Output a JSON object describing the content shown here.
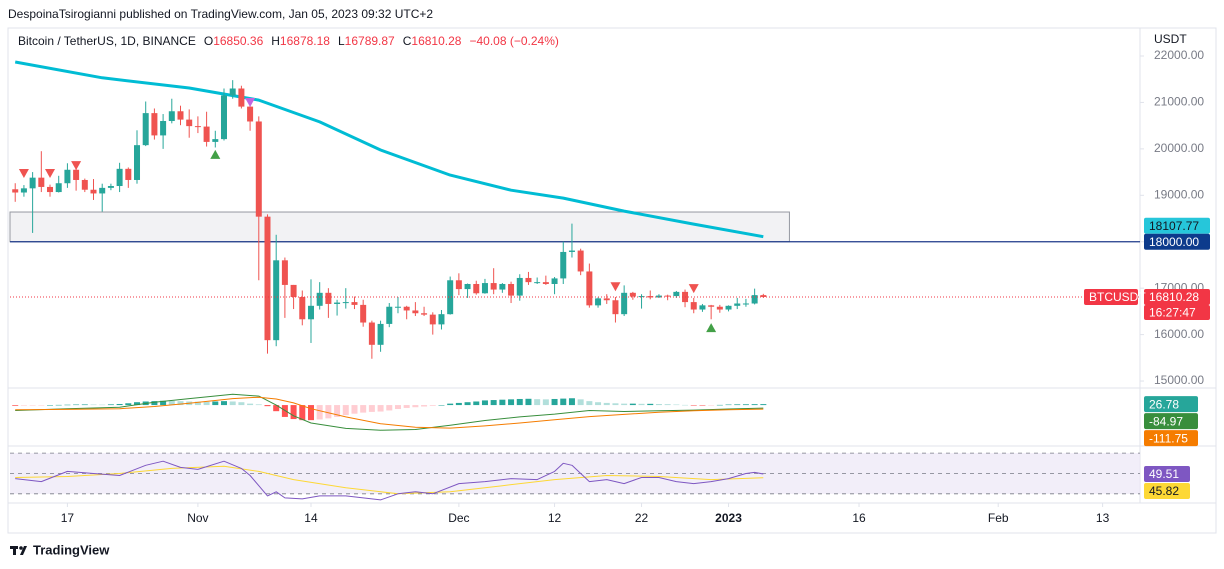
{
  "header": {
    "publisher": "DespoinaTsirogianni published on TradingView.com, Jan 05, 2023 09:32 UTC+2",
    "symbol": "Bitcoin / TetherUS, 1D, BINANCE",
    "o_label": "O",
    "h_label": "H",
    "l_label": "L",
    "c_label": "C",
    "change": "−40.08 (−0.24%)"
  },
  "footer": {
    "brand": "TradingView"
  },
  "chart_data": {
    "type": "candlestick",
    "open": [
      19130,
      19060,
      19150,
      19380,
      19180,
      19070,
      19260,
      19550,
      19330,
      19120,
      19040,
      19160,
      19200,
      19570,
      19330,
      20080,
      20770,
      20290,
      20600,
      20810,
      20630,
      20490,
      20480,
      20150,
      20210,
      21150,
      21300,
      20910,
      20590,
      18540,
      15880,
      17600,
      17070,
      16810,
      16330,
      16620,
      16900,
      16660,
      16690,
      16700,
      16640,
      16260,
      15780,
      16230,
      16600,
      16600,
      16520,
      16460,
      16430,
      16220,
      16440,
      17170,
      16980,
      17090,
      16890,
      17110,
      16970,
      17090,
      16840,
      17220,
      17130,
      17130,
      17090,
      17210,
      17780,
      17810,
      17360,
      16630,
      16780,
      16740,
      16440,
      16900,
      16820,
      16830,
      16800,
      16840,
      16830,
      16920,
      16700,
      16540,
      16630,
      16600,
      16540,
      16620,
      16670,
      16670,
      16850.36
    ],
    "high": [
      19260,
      19220,
      19500,
      19950,
      19230,
      19420,
      19690,
      19710,
      19360,
      19350,
      19250,
      19250,
      19700,
      19600,
      20400,
      21020,
      20870,
      20750,
      21080,
      20930,
      20850,
      20700,
      20800,
      20390,
      21300,
      21480,
      21360,
      21070,
      20700,
      18590,
      18150,
      17660,
      17070,
      16950,
      17190,
      17130,
      17000,
      16750,
      17000,
      16820,
      16750,
      16300,
      16300,
      16680,
      16810,
      16620,
      16700,
      16600,
      16480,
      16530,
      17250,
      17320,
      17100,
      17160,
      17200,
      17430,
      17110,
      17140,
      17300,
      17350,
      17230,
      17270,
      17240,
      18000,
      18390,
      17850,
      17530,
      16800,
      16870,
      16810,
      17060,
      16920,
      16870,
      16950,
      16870,
      16860,
      16940,
      16970,
      16790,
      16660,
      16640,
      16640,
      16630,
      16790,
      16770,
      16990,
      16878.18
    ],
    "low": [
      18860,
      18970,
      18190,
      19070,
      18970,
      19060,
      19160,
      19100,
      19070,
      18900,
      18650,
      19110,
      19070,
      19160,
      19250,
      20060,
      20200,
      20000,
      20550,
      20510,
      20240,
      20340,
      20050,
      20030,
      20180,
      21080,
      20870,
      20390,
      17170,
      15590,
      15750,
      16360,
      16550,
      16200,
      15820,
      16540,
      16360,
      16410,
      16560,
      16550,
      16170,
      15480,
      15630,
      16160,
      16460,
      16330,
      16400,
      16400,
      16000,
      16110,
      16430,
      16850,
      16790,
      16860,
      16880,
      16870,
      16900,
      16680,
      16730,
      17070,
      17090,
      17070,
      16870,
      17090,
      17660,
      17280,
      16580,
      16580,
      16660,
      16260,
      16400,
      16750,
      16560,
      16760,
      16790,
      16740,
      16790,
      16590,
      16460,
      16490,
      16330,
      16470,
      16500,
      16550,
      16600,
      16650,
      16789.87
    ],
    "close": [
      19060,
      19150,
      19380,
      19180,
      19070,
      19260,
      19550,
      19330,
      19120,
      19040,
      19160,
      19200,
      19570,
      19330,
      20080,
      20770,
      20290,
      20600,
      20810,
      20630,
      20490,
      20480,
      20150,
      20210,
      21150,
      21300,
      20910,
      20590,
      18540,
      15880,
      17600,
      17070,
      16810,
      16330,
      16620,
      16900,
      16660,
      16690,
      16700,
      16640,
      16260,
      15780,
      16230,
      16600,
      16600,
      16520,
      16460,
      16430,
      16220,
      16440,
      17170,
      16980,
      17090,
      16890,
      17110,
      16970,
      17090,
      16840,
      17220,
      17130,
      17130,
      17090,
      17210,
      17780,
      17810,
      17360,
      16630,
      16780,
      16740,
      16440,
      16900,
      16820,
      16830,
      16800,
      16840,
      16830,
      16920,
      16700,
      16540,
      16630,
      16600,
      16540,
      16620,
      16670,
      16670,
      16850.36,
      16810.28
    ],
    "up_color": "#26a69a",
    "down_color": "#ef5350",
    "xlim": [
      -0.6,
      129.3
    ],
    "xticks": [
      {
        "value": 6,
        "label": "17"
      },
      {
        "value": 21,
        "label": "Nov"
      },
      {
        "value": 34,
        "label": "14"
      },
      {
        "value": 51,
        "label": "Dec"
      },
      {
        "value": 62,
        "label": "12"
      },
      {
        "value": 72,
        "label": "22"
      },
      {
        "value": 82,
        "label": "2023"
      },
      {
        "value": 97,
        "label": "16"
      },
      {
        "value": 113,
        "label": "Feb"
      },
      {
        "value": 125,
        "label": "13"
      }
    ],
    "ylim": [
      14850,
      22560
    ],
    "yticks": [
      {
        "value": 22000,
        "label": "22000.00"
      },
      {
        "value": 21000,
        "label": "21000.00"
      },
      {
        "value": 20000,
        "label": "20000.00"
      },
      {
        "value": 19000,
        "label": "19000.00"
      },
      {
        "value": 18000,
        "label": "18000.00"
      },
      {
        "value": 17000,
        "label": "17000.00"
      },
      {
        "value": 16000,
        "label": "16000.00"
      },
      {
        "value": 15000,
        "label": "15000.00"
      }
    ],
    "y_axis_label": "USDT",
    "symbol_label": "BTCUSDT",
    "countdown": "16:27:47",
    "moving_average": {
      "color": "#00bcd4",
      "x": [
        0,
        10,
        20,
        28,
        35,
        42,
        50,
        57,
        63,
        70,
        78,
        86
      ],
      "values": [
        21870,
        21530,
        21310,
        21050,
        20580,
        19975,
        19435,
        19110,
        18940,
        18660,
        18380,
        18107.77
      ]
    },
    "zone": {
      "top": 18640,
      "bottom": 18000,
      "x_end": 89
    },
    "level": {
      "value": 18000,
      "label": "18000.00",
      "color": "#1e3a8a"
    },
    "signals": [
      {
        "x": 1,
        "price": 19480,
        "dir": "down",
        "color": "#ef5350"
      },
      {
        "x": 4,
        "price": 19480,
        "dir": "down",
        "color": "#ef5350"
      },
      {
        "x": 7,
        "price": 19650,
        "dir": "down",
        "color": "#ef5350"
      },
      {
        "x": 23,
        "price": 19870,
        "dir": "up",
        "color": "#43a047"
      },
      {
        "x": 27,
        "price": 21010,
        "dir": "down",
        "color": "#c266e0"
      },
      {
        "x": 69,
        "price": 17040,
        "dir": "down",
        "color": "#ef5350"
      },
      {
        "x": 78,
        "price": 17000,
        "dir": "down",
        "color": "#ef5350"
      },
      {
        "x": 80,
        "price": 16140,
        "dir": "up",
        "color": "#43a047"
      }
    ],
    "macd": {
      "ylim": [
        -1140,
        420
      ],
      "hist": [
        -20,
        -15,
        -10,
        -5,
        0,
        5,
        10,
        15,
        18,
        15,
        12,
        20,
        30,
        50,
        80,
        100,
        110,
        120,
        115,
        110,
        100,
        95,
        90,
        100,
        110,
        100,
        80,
        40,
        20,
        -30,
        -170,
        -330,
        -390,
        -420,
        -420,
        -400,
        -370,
        -330,
        -280,
        -240,
        -210,
        -190,
        -180,
        -150,
        -110,
        -80,
        -60,
        -40,
        -20,
        0,
        40,
        60,
        80,
        100,
        130,
        140,
        150,
        160,
        170,
        175,
        165,
        160,
        170,
        180,
        190,
        160,
        110,
        80,
        60,
        50,
        40,
        40,
        35,
        35,
        30,
        25,
        15,
        5,
        -5,
        -10,
        -5,
        5,
        15,
        20,
        22,
        25,
        26.78
      ],
      "macd": {
        "color": "#388e3c",
        "x": [
          0,
          6,
          12,
          16,
          20,
          25,
          28,
          30,
          32,
          34,
          38,
          42,
          46,
          50,
          54,
          58,
          62,
          66,
          70,
          74,
          78,
          82,
          86
        ],
        "values": [
          -150,
          -100,
          -60,
          80,
          180,
          300,
          250,
          0,
          -300,
          -500,
          -650,
          -700,
          -680,
          -560,
          -430,
          -330,
          -250,
          -150,
          -180,
          -160,
          -140,
          -110,
          -84.97
        ]
      },
      "signal": {
        "color": "#f57c00",
        "x": [
          0,
          6,
          12,
          16,
          20,
          25,
          28,
          30,
          32,
          34,
          38,
          42,
          46,
          50,
          54,
          58,
          62,
          66,
          70,
          74,
          78,
          82,
          86
        ],
        "values": [
          -130,
          -120,
          -100,
          -40,
          50,
          180,
          220,
          170,
          60,
          -100,
          -330,
          -520,
          -620,
          -640,
          -580,
          -500,
          -410,
          -320,
          -260,
          -200,
          -160,
          -130,
          -111.75
        ]
      }
    },
    "rsi": {
      "ylim": [
        21,
        75
      ],
      "levels": [
        70,
        50,
        30
      ],
      "rsi": {
        "color": "#7e57c2",
        "x": [
          0,
          3,
          6,
          9,
          12,
          15,
          17,
          19,
          21,
          24,
          26,
          27,
          28,
          29,
          30,
          31,
          33,
          35,
          38,
          42,
          44,
          46,
          48,
          51,
          54,
          57,
          60,
          62,
          63,
          64,
          65,
          66,
          68,
          70,
          72,
          74,
          76,
          78,
          80,
          82,
          84,
          85,
          86
        ],
        "values": [
          45,
          42,
          52,
          50,
          48,
          58,
          62,
          56,
          54,
          62,
          55,
          48,
          38,
          28,
          32,
          26,
          25,
          28,
          28,
          24,
          30,
          32,
          30,
          40,
          42,
          45,
          44,
          52,
          60,
          58,
          50,
          42,
          44,
          40,
          46,
          46,
          42,
          40,
          42,
          45,
          50,
          51,
          49.51
        ]
      },
      "ma": {
        "color": "#fdd835",
        "x": [
          0,
          6,
          12,
          18,
          24,
          28,
          32,
          38,
          44,
          50,
          56,
          62,
          68,
          74,
          80,
          86
        ],
        "values": [
          46,
          47,
          50,
          55,
          57,
          52,
          44,
          36,
          30,
          32,
          38,
          44,
          48,
          47,
          44,
          45.82
        ]
      }
    }
  }
}
